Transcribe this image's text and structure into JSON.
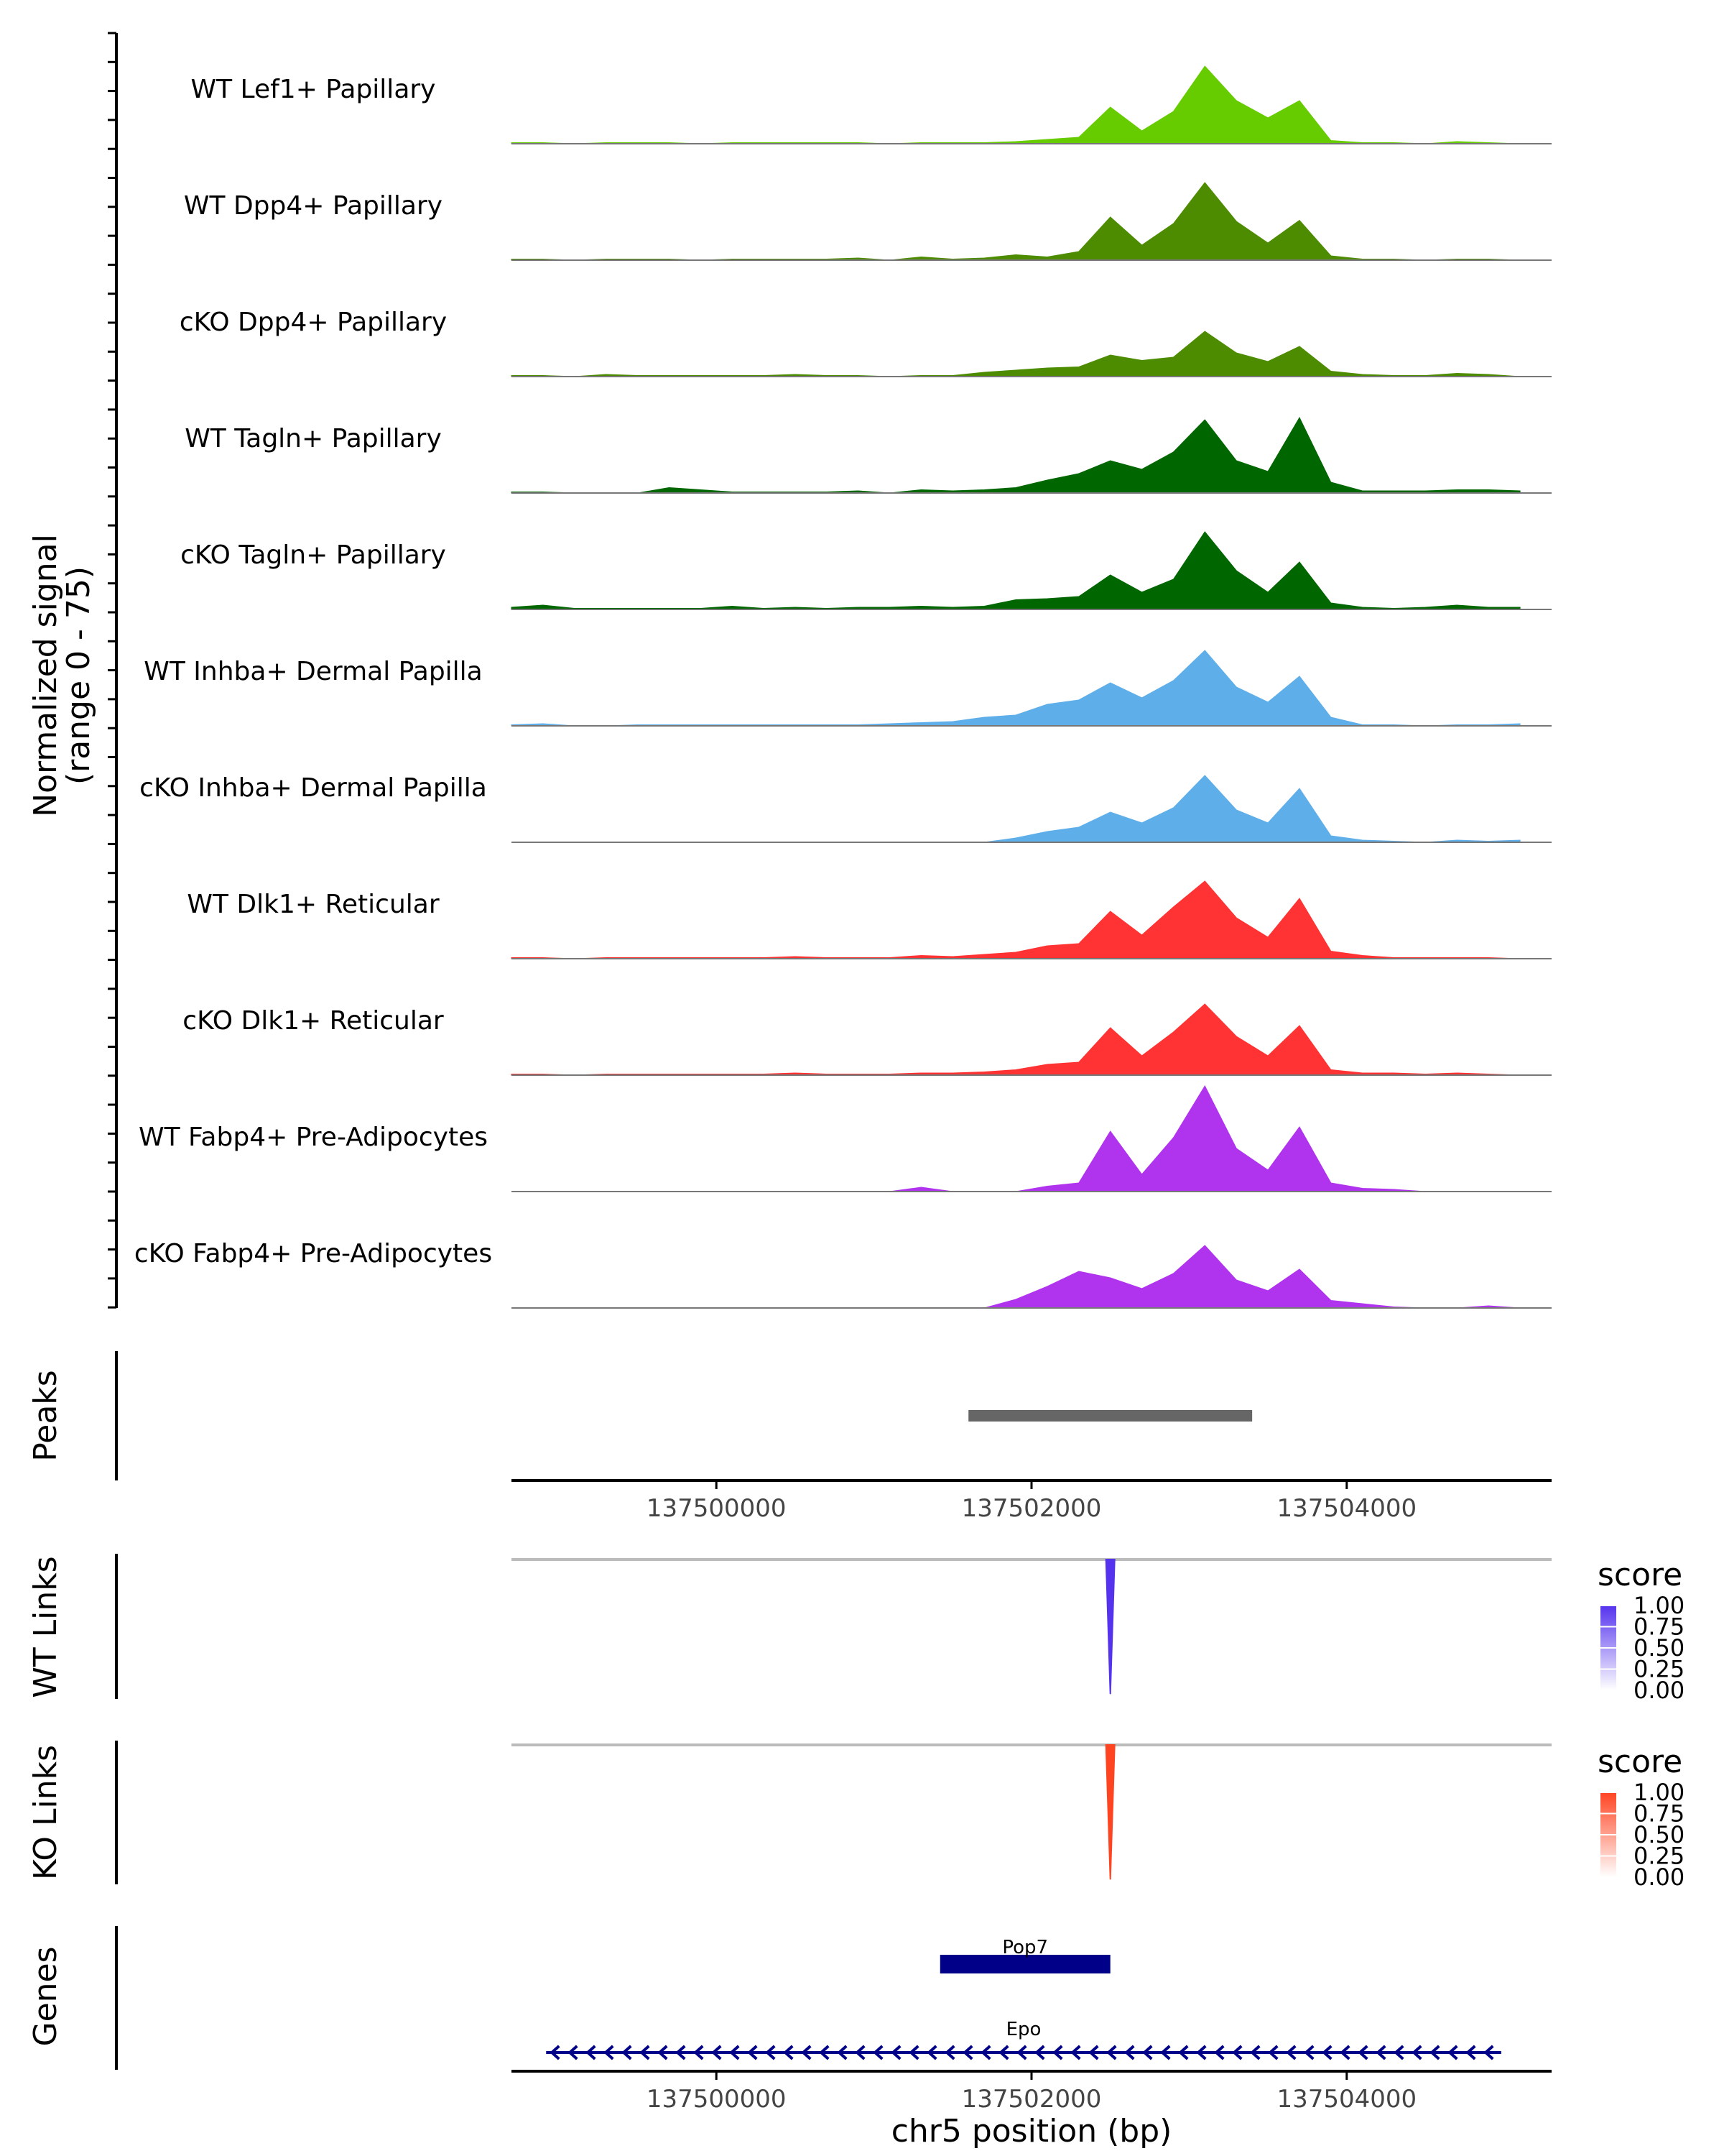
{
  "chart_data": {
    "type": "area",
    "subtype": "genome-coverage-tracks",
    "y_axis_label_line1": "Normalized signal",
    "y_axis_label_line2": "(range 0 - 75)",
    "ylim": [
      0,
      75
    ],
    "xlim": [
      137498700,
      137505300
    ],
    "x_label": "chr5 position (bp)",
    "x_ticks": [
      137500000,
      137502000,
      137504000
    ],
    "x_tick_labels": [
      "137500000",
      "137502000",
      "137504000"
    ],
    "x_grid": [
      137498700,
      137498900,
      137499100,
      137499300,
      137499500,
      137499700,
      137499900,
      137500100,
      137500300,
      137500500,
      137500700,
      137500900,
      137501100,
      137501300,
      137501500,
      137501700,
      137501900,
      137502100,
      137502300,
      137502500,
      137502700,
      137502900,
      137503100,
      137503300,
      137503500,
      137503700,
      137503900,
      137504100,
      137504300,
      137504500,
      137504700,
      137504900,
      137505100
    ],
    "tracks": [
      {
        "label": "WT Lef1+ Papillary",
        "color": "#66cc00",
        "values": [
          1,
          1,
          0,
          1,
          1,
          1,
          0,
          1,
          1,
          1,
          1,
          1,
          0,
          1,
          1,
          1,
          2,
          4,
          6,
          34,
          12,
          30,
          72,
          40,
          24,
          40,
          3,
          1,
          1,
          0,
          2,
          1,
          0
        ]
      },
      {
        "label": "WT Dpp4+ Papillary",
        "color": "#4d8c00",
        "values": [
          1,
          1,
          0,
          1,
          1,
          1,
          0,
          1,
          1,
          1,
          1,
          2,
          0,
          3,
          1,
          2,
          5,
          3,
          8,
          40,
          14,
          34,
          72,
          36,
          16,
          37,
          4,
          1,
          1,
          0,
          1,
          1,
          0
        ]
      },
      {
        "label": "cKO Dpp4+ Papillary",
        "color": "#4d8c00",
        "values": [
          1,
          1,
          0,
          2,
          1,
          1,
          1,
          1,
          1,
          2,
          1,
          1,
          0,
          1,
          1,
          4,
          6,
          8,
          9,
          20,
          15,
          18,
          42,
          22,
          14,
          28,
          5,
          2,
          1,
          1,
          3,
          2,
          0
        ]
      },
      {
        "label": "WT Tagln+ Papillary",
        "color": "#006600",
        "values": [
          1,
          1,
          0,
          0,
          0,
          5,
          3,
          1,
          1,
          1,
          1,
          2,
          0,
          3,
          2,
          3,
          5,
          12,
          18,
          30,
          22,
          38,
          68,
          30,
          20,
          70,
          10,
          2,
          2,
          2,
          3,
          3,
          2
        ]
      },
      {
        "label": "cKO Tagln+ Papillary",
        "color": "#006600",
        "values": [
          2,
          4,
          1,
          1,
          1,
          1,
          1,
          3,
          1,
          2,
          1,
          2,
          2,
          3,
          2,
          3,
          9,
          10,
          12,
          32,
          16,
          28,
          72,
          36,
          16,
          44,
          6,
          2,
          1,
          2,
          4,
          2,
          2
        ]
      },
      {
        "label": "WT Inhba+ Dermal Papilla",
        "color": "#5eaeea",
        "values": [
          1,
          2,
          0,
          0,
          1,
          1,
          1,
          1,
          1,
          1,
          1,
          1,
          2,
          3,
          4,
          8,
          10,
          20,
          24,
          40,
          26,
          42,
          70,
          36,
          22,
          46,
          8,
          1,
          1,
          0,
          1,
          1,
          2
        ]
      },
      {
        "label": "cKO Inhba+ Dermal Papilla",
        "color": "#5eaeea",
        "values": [
          0,
          0,
          0,
          0,
          0,
          0,
          0,
          0,
          0,
          0,
          0,
          0,
          0,
          0,
          0,
          0,
          4,
          10,
          14,
          28,
          18,
          32,
          62,
          30,
          18,
          50,
          6,
          2,
          1,
          0,
          2,
          1,
          2
        ]
      },
      {
        "label": "WT Dlk1+ Reticular",
        "color": "#ff3333",
        "values": [
          1,
          1,
          0,
          1,
          1,
          1,
          1,
          1,
          1,
          2,
          1,
          1,
          1,
          3,
          2,
          4,
          6,
          12,
          14,
          44,
          22,
          48,
          72,
          38,
          20,
          56,
          7,
          3,
          1,
          1,
          1,
          1,
          0
        ]
      },
      {
        "label": "cKO Dlk1+ Reticular",
        "color": "#ff3333",
        "values": [
          1,
          1,
          0,
          1,
          1,
          1,
          1,
          1,
          1,
          2,
          1,
          1,
          1,
          2,
          2,
          3,
          5,
          10,
          12,
          44,
          18,
          40,
          66,
          36,
          18,
          46,
          5,
          2,
          2,
          1,
          2,
          1,
          0
        ]
      },
      {
        "label": "WT Fabp4+ Pre-Adipocytes",
        "color": "#b033ee",
        "values": [
          0,
          0,
          0,
          0,
          0,
          0,
          0,
          0,
          0,
          0,
          0,
          0,
          0,
          4,
          0,
          0,
          0,
          5,
          8,
          56,
          16,
          50,
          98,
          40,
          20,
          60,
          8,
          3,
          2,
          0,
          0,
          0,
          0
        ]
      },
      {
        "label": "cKO Fabp4+ Pre-Adipocytes",
        "color": "#b033ee",
        "values": [
          0,
          0,
          0,
          0,
          0,
          0,
          0,
          0,
          0,
          0,
          0,
          0,
          0,
          0,
          0,
          0,
          8,
          20,
          34,
          28,
          18,
          32,
          58,
          26,
          16,
          36,
          7,
          4,
          1,
          0,
          0,
          2,
          0
        ]
      }
    ],
    "peaks": {
      "label": "Peaks",
      "regions": [
        [
          137501600,
          137503400
        ]
      ],
      "color": "#666666"
    },
    "links": [
      {
        "label": "WT Links",
        "legend_title": "score",
        "color_high": "#5533ee",
        "color_low": "#ffffff",
        "legend_ticks": [
          "1.00",
          "0.75",
          "0.50",
          "0.25",
          "0.00"
        ],
        "link_position": 137502500,
        "score": 1.0
      },
      {
        "label": "KO Links",
        "legend_title": "score",
        "color_high": "#ff4422",
        "color_low": "#ffffff",
        "legend_ticks": [
          "1.00",
          "0.75",
          "0.50",
          "0.25",
          "0.00"
        ],
        "link_position": 137502500,
        "score": 1.0
      }
    ],
    "genes": {
      "label": "Genes",
      "color": "#000088",
      "items": [
        {
          "name": "Pop7",
          "start": 137501420,
          "end": 137502500,
          "type": "exon"
        },
        {
          "name": "Epo",
          "start": 137498920,
          "end": 137504980,
          "type": "intron-arrows",
          "strand": "-"
        }
      ]
    }
  }
}
